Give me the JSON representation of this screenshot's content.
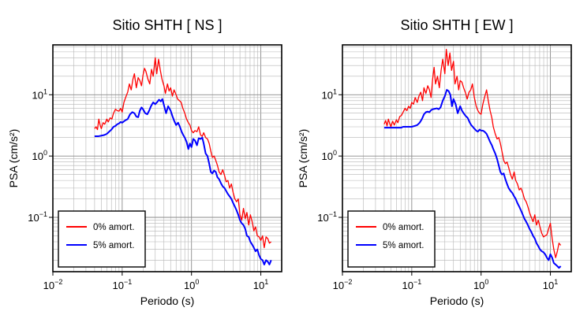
{
  "chart_data": [
    {
      "type": "line",
      "title": "Sitio SHTH [ NS ]",
      "xlabel": "Periodo (s)",
      "ylabel": "PSA (cm/s²)",
      "xscale": "log",
      "yscale": "log",
      "xlim": [
        0.01,
        20
      ],
      "ylim": [
        0.013,
        65
      ],
      "grid": true,
      "legend": "bottom-left",
      "xticks": [
        {
          "v": 0.01,
          "b": "10",
          "e": "−2"
        },
        {
          "v": 0.1,
          "b": "10",
          "e": "−1"
        },
        {
          "v": 1,
          "b": "10",
          "e": "0"
        },
        {
          "v": 10,
          "b": "10",
          "e": "1"
        }
      ],
      "yticks": [
        {
          "v": 0.1,
          "b": "10",
          "e": "−1"
        },
        {
          "v": 1,
          "b": "10",
          "e": "0"
        },
        {
          "v": 10,
          "b": "10",
          "e": "1"
        }
      ],
      "series": [
        {
          "name": "0% amort.",
          "color": "#ff0000",
          "x": [
            0.04,
            0.042,
            0.044,
            0.046,
            0.048,
            0.05,
            0.053,
            0.056,
            0.06,
            0.063,
            0.067,
            0.071,
            0.075,
            0.08,
            0.085,
            0.09,
            0.095,
            0.1,
            0.106,
            0.112,
            0.12,
            0.127,
            0.135,
            0.143,
            0.15,
            0.16,
            0.17,
            0.18,
            0.19,
            0.2,
            0.21,
            0.22,
            0.235,
            0.25,
            0.265,
            0.28,
            0.3,
            0.315,
            0.335,
            0.355,
            0.375,
            0.4,
            0.42,
            0.45,
            0.475,
            0.5,
            0.53,
            0.56,
            0.6,
            0.63,
            0.67,
            0.71,
            0.75,
            0.8,
            0.85,
            0.9,
            0.95,
            1.0,
            1.06,
            1.12,
            1.2,
            1.27,
            1.35,
            1.43,
            1.5,
            1.6,
            1.7,
            1.8,
            1.9,
            2.0,
            2.12,
            2.24,
            2.37,
            2.5,
            2.66,
            2.82,
            3.0,
            3.16,
            3.35,
            3.55,
            3.76,
            4.0,
            4.22,
            4.47,
            4.73,
            5.0,
            5.3,
            5.62,
            5.96,
            6.3,
            6.68,
            7.07,
            7.5,
            7.94,
            8.4,
            8.9,
            9.44,
            10.0,
            10.6,
            11.2,
            11.9,
            12.6,
            13.3,
            14.1
          ],
          "y": [
            2.8,
            3.0,
            2.7,
            4.0,
            3.2,
            2.8,
            3.5,
            3.3,
            4.0,
            3.6,
            4.2,
            4.0,
            5.0,
            5.8,
            5.5,
            5.4,
            6.0,
            5.2,
            7.5,
            9.0,
            11.0,
            15.0,
            12.0,
            18.0,
            22.0,
            13.0,
            19.0,
            17.0,
            14.0,
            21.0,
            27.0,
            24.0,
            18.0,
            15.0,
            26.0,
            20.0,
            40.0,
            22.0,
            38.0,
            25.0,
            18.0,
            14.0,
            10.5,
            15.0,
            11.5,
            13.0,
            9.5,
            12.0,
            10.0,
            8.5,
            8.0,
            7.5,
            6.0,
            5.0,
            4.0,
            3.5,
            3.2,
            2.6,
            2.4,
            2.6,
            2.5,
            3.0,
            2.2,
            2.1,
            2.4,
            2.0,
            1.9,
            1.6,
            1.2,
            0.95,
            1.0,
            0.85,
            0.7,
            0.55,
            0.5,
            0.6,
            0.48,
            0.38,
            0.4,
            0.3,
            0.35,
            0.25,
            0.2,
            0.18,
            0.2,
            0.11,
            0.09,
            0.14,
            0.095,
            0.12,
            0.075,
            0.11,
            0.085,
            0.06,
            0.07,
            0.05,
            0.048,
            0.042,
            0.05,
            0.032,
            0.048,
            0.045,
            0.038,
            0.04
          ]
        },
        {
          "name": "5% amort.",
          "color": "#0000ff",
          "x": [
            0.04,
            0.045,
            0.05,
            0.055,
            0.06,
            0.065,
            0.07,
            0.075,
            0.08,
            0.085,
            0.09,
            0.095,
            0.1,
            0.11,
            0.12,
            0.13,
            0.14,
            0.15,
            0.16,
            0.17,
            0.18,
            0.19,
            0.2,
            0.215,
            0.23,
            0.245,
            0.26,
            0.28,
            0.3,
            0.32,
            0.34,
            0.36,
            0.38,
            0.4,
            0.43,
            0.46,
            0.5,
            0.53,
            0.56,
            0.6,
            0.64,
            0.68,
            0.72,
            0.76,
            0.8,
            0.85,
            0.9,
            0.95,
            1.0,
            1.06,
            1.12,
            1.2,
            1.27,
            1.35,
            1.43,
            1.5,
            1.6,
            1.7,
            1.8,
            1.9,
            2.0,
            2.12,
            2.24,
            2.37,
            2.5,
            2.66,
            2.82,
            3.0,
            3.16,
            3.35,
            3.55,
            3.76,
            4.0,
            4.22,
            4.47,
            4.73,
            5.0,
            5.3,
            5.62,
            5.96,
            6.3,
            6.68,
            7.07,
            7.5,
            7.94,
            8.4,
            8.9,
            9.44,
            10.0,
            10.6,
            11.2,
            11.9,
            12.6,
            13.3,
            14.1
          ],
          "y": [
            2.1,
            2.1,
            2.15,
            2.2,
            2.3,
            2.5,
            2.7,
            3.0,
            3.1,
            3.3,
            3.4,
            3.6,
            3.5,
            3.8,
            4.0,
            4.8,
            5.2,
            5.0,
            4.4,
            4.3,
            5.5,
            6.2,
            5.8,
            5.0,
            4.8,
            5.5,
            6.5,
            7.5,
            7.0,
            7.6,
            8.3,
            7.8,
            8.5,
            6.8,
            5.0,
            6.5,
            5.5,
            4.5,
            3.8,
            3.2,
            3.5,
            3.0,
            2.5,
            2.2,
            2.0,
            1.7,
            1.3,
            1.6,
            1.4,
            1.9,
            1.8,
            1.5,
            1.95,
            1.9,
            2.0,
            1.6,
            1.1,
            1.0,
            0.75,
            0.55,
            0.52,
            0.58,
            0.55,
            0.45,
            0.42,
            0.36,
            0.32,
            0.3,
            0.27,
            0.24,
            0.22,
            0.2,
            0.17,
            0.15,
            0.13,
            0.11,
            0.09,
            0.08,
            0.075,
            0.065,
            0.05,
            0.048,
            0.04,
            0.036,
            0.032,
            0.028,
            0.03,
            0.024,
            0.021,
            0.02,
            0.017,
            0.02,
            0.019,
            0.017,
            0.02
          ]
        }
      ]
    },
    {
      "type": "line",
      "title": "Sitio SHTH [ EW ]",
      "xlabel": "Periodo (s)",
      "ylabel": "PSA (cm/s²)",
      "xscale": "log",
      "yscale": "log",
      "xlim": [
        0.01,
        20
      ],
      "ylim": [
        0.013,
        65
      ],
      "grid": true,
      "legend": "bottom-left",
      "xticks": [
        {
          "v": 0.01,
          "b": "10",
          "e": "−2"
        },
        {
          "v": 0.1,
          "b": "10",
          "e": "−1"
        },
        {
          "v": 1,
          "b": "10",
          "e": "0"
        },
        {
          "v": 10,
          "b": "10",
          "e": "1"
        }
      ],
      "yticks": [
        {
          "v": 0.1,
          "b": "10",
          "e": "−1"
        },
        {
          "v": 1,
          "b": "10",
          "e": "0"
        },
        {
          "v": 10,
          "b": "10",
          "e": "1"
        }
      ],
      "series": [
        {
          "name": "0% amort.",
          "color": "#ff0000",
          "x": [
            0.04,
            0.042,
            0.044,
            0.046,
            0.048,
            0.05,
            0.053,
            0.056,
            0.06,
            0.063,
            0.067,
            0.071,
            0.075,
            0.08,
            0.085,
            0.09,
            0.095,
            0.1,
            0.106,
            0.112,
            0.12,
            0.127,
            0.135,
            0.143,
            0.15,
            0.16,
            0.17,
            0.18,
            0.19,
            0.2,
            0.21,
            0.22,
            0.235,
            0.25,
            0.265,
            0.28,
            0.3,
            0.315,
            0.335,
            0.355,
            0.375,
            0.4,
            0.42,
            0.45,
            0.475,
            0.5,
            0.53,
            0.56,
            0.6,
            0.63,
            0.67,
            0.71,
            0.75,
            0.8,
            0.85,
            0.9,
            0.95,
            1.0,
            1.06,
            1.12,
            1.2,
            1.27,
            1.35,
            1.43,
            1.5,
            1.6,
            1.7,
            1.8,
            1.9,
            2.0,
            2.12,
            2.24,
            2.37,
            2.5,
            2.66,
            2.82,
            3.0,
            3.16,
            3.35,
            3.55,
            3.76,
            4.0,
            4.22,
            4.47,
            4.73,
            5.0,
            5.3,
            5.62,
            5.96,
            6.3,
            6.68,
            7.07,
            7.5,
            7.94,
            8.4,
            8.9,
            9.44,
            10.0,
            10.6,
            11.2,
            11.9,
            12.6,
            13.3,
            14.1
          ],
          "y": [
            3.3,
            3.8,
            3.1,
            4.0,
            3.4,
            3.0,
            3.7,
            3.2,
            3.9,
            3.5,
            4.4,
            4.6,
            5.2,
            6.0,
            5.5,
            6.5,
            6.0,
            7.5,
            7.0,
            9.0,
            7.5,
            9.5,
            11.0,
            8.0,
            13.0,
            10.5,
            14.0,
            12.0,
            9.0,
            18.0,
            28.0,
            15.0,
            20.0,
            13.0,
            25.0,
            38.0,
            22.0,
            55.0,
            30.0,
            48.0,
            25.0,
            35.0,
            15.0,
            20.0,
            12.0,
            17.0,
            16.0,
            13.0,
            10.5,
            8.5,
            11.0,
            12.0,
            15.0,
            9.0,
            6.5,
            5.5,
            5.0,
            4.8,
            7.0,
            9.0,
            12.0,
            8.0,
            5.5,
            4.2,
            3.0,
            2.3,
            1.9,
            2.0,
            1.6,
            1.2,
            0.85,
            0.75,
            0.8,
            0.65,
            0.5,
            0.42,
            0.55,
            0.4,
            0.35,
            0.28,
            0.3,
            0.25,
            0.2,
            0.18,
            0.15,
            0.12,
            0.1,
            0.085,
            0.11,
            0.075,
            0.09,
            0.07,
            0.055,
            0.048,
            0.05,
            0.052,
            0.065,
            0.08,
            0.045,
            0.03,
            0.022,
            0.028,
            0.038,
            0.035
          ]
        },
        {
          "name": "5% amort.",
          "color": "#0000ff",
          "x": [
            0.04,
            0.045,
            0.05,
            0.055,
            0.06,
            0.065,
            0.07,
            0.075,
            0.08,
            0.085,
            0.09,
            0.095,
            0.1,
            0.11,
            0.12,
            0.13,
            0.14,
            0.15,
            0.16,
            0.17,
            0.18,
            0.19,
            0.2,
            0.215,
            0.23,
            0.245,
            0.26,
            0.28,
            0.3,
            0.32,
            0.34,
            0.36,
            0.38,
            0.4,
            0.43,
            0.46,
            0.5,
            0.53,
            0.56,
            0.6,
            0.64,
            0.68,
            0.72,
            0.76,
            0.8,
            0.85,
            0.9,
            0.95,
            1.0,
            1.06,
            1.12,
            1.2,
            1.27,
            1.35,
            1.43,
            1.5,
            1.6,
            1.7,
            1.8,
            1.9,
            2.0,
            2.12,
            2.24,
            2.37,
            2.5,
            2.66,
            2.82,
            3.0,
            3.16,
            3.35,
            3.55,
            3.76,
            4.0,
            4.22,
            4.47,
            4.73,
            5.0,
            5.3,
            5.62,
            5.96,
            6.3,
            6.68,
            7.07,
            7.5,
            7.94,
            8.4,
            8.9,
            9.44,
            10.0,
            10.6,
            11.2,
            11.9,
            12.6,
            13.3,
            14.1
          ],
          "y": [
            2.9,
            2.9,
            2.9,
            2.9,
            2.9,
            2.9,
            2.9,
            3.0,
            3.0,
            3.0,
            3.0,
            3.0,
            3.0,
            3.1,
            3.2,
            3.5,
            4.0,
            4.8,
            5.2,
            5.3,
            5.2,
            5.6,
            5.8,
            5.9,
            6.0,
            5.8,
            6.2,
            8.0,
            9.5,
            12.0,
            11.5,
            10.0,
            6.5,
            8.5,
            7.0,
            5.0,
            6.5,
            5.5,
            5.0,
            4.5,
            4.2,
            3.6,
            3.2,
            3.0,
            2.8,
            2.6,
            2.5,
            2.7,
            2.6,
            2.6,
            2.5,
            2.3,
            2.0,
            1.7,
            1.5,
            1.3,
            1.1,
            0.9,
            0.7,
            0.55,
            0.5,
            0.52,
            0.42,
            0.35,
            0.3,
            0.27,
            0.25,
            0.22,
            0.2,
            0.17,
            0.15,
            0.13,
            0.11,
            0.095,
            0.085,
            0.075,
            0.065,
            0.058,
            0.05,
            0.045,
            0.038,
            0.034,
            0.03,
            0.028,
            0.027,
            0.025,
            0.022,
            0.02,
            0.025,
            0.022,
            0.018,
            0.017,
            0.016,
            0.015,
            0.016
          ]
        }
      ]
    }
  ]
}
